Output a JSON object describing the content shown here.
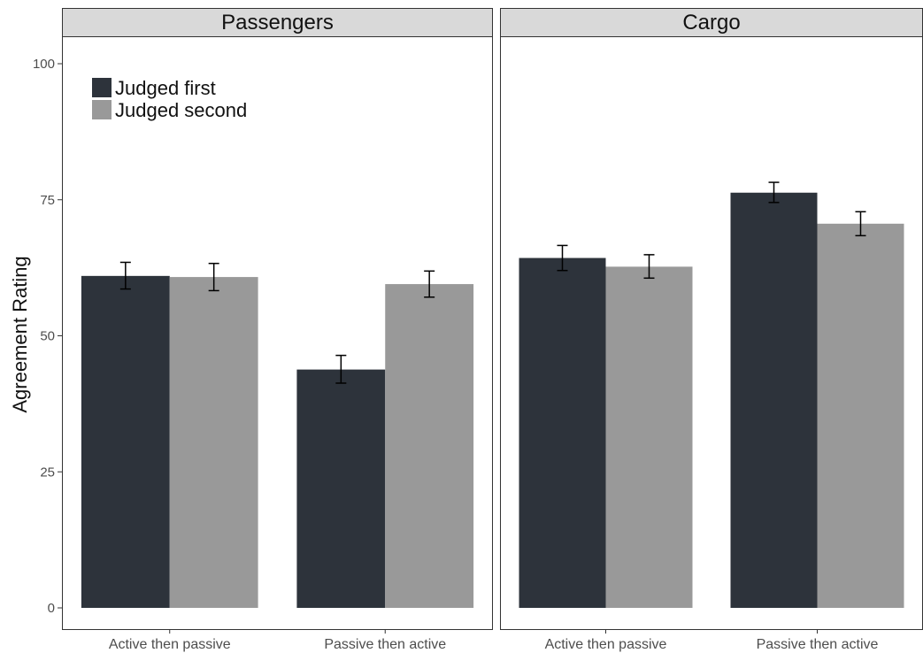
{
  "chart_data": {
    "type": "bar",
    "ylabel": "Agreement Rating",
    "ylim": [
      0,
      100
    ],
    "yticks": [
      0,
      25,
      50,
      75,
      100
    ],
    "categories": [
      "Active then passive",
      "Passive then active"
    ],
    "legend": {
      "placement": "top-left",
      "entries": [
        "Judged first",
        "Judged second"
      ]
    },
    "colors": {
      "Judged first": "#2d333b",
      "Judged second": "#999999"
    },
    "grid": false,
    "error_bars": true,
    "panels": [
      {
        "title": "Passengers",
        "series": [
          {
            "name": "Judged first",
            "values": [
              61.0,
              43.8
            ],
            "err_low": [
              58.6,
              41.3
            ],
            "err_high": [
              63.5,
              46.4
            ]
          },
          {
            "name": "Judged second",
            "values": [
              60.8,
              59.5
            ],
            "err_low": [
              58.3,
              57.1
            ],
            "err_high": [
              63.3,
              61.9
            ]
          }
        ]
      },
      {
        "title": "Cargo",
        "series": [
          {
            "name": "Judged first",
            "values": [
              64.3,
              76.3
            ],
            "err_low": [
              62.0,
              74.5
            ],
            "err_high": [
              66.6,
              78.2
            ]
          },
          {
            "name": "Judged second",
            "values": [
              62.7,
              70.6
            ],
            "err_low": [
              60.6,
              68.4
            ],
            "err_high": [
              64.9,
              72.8
            ]
          }
        ]
      }
    ]
  }
}
